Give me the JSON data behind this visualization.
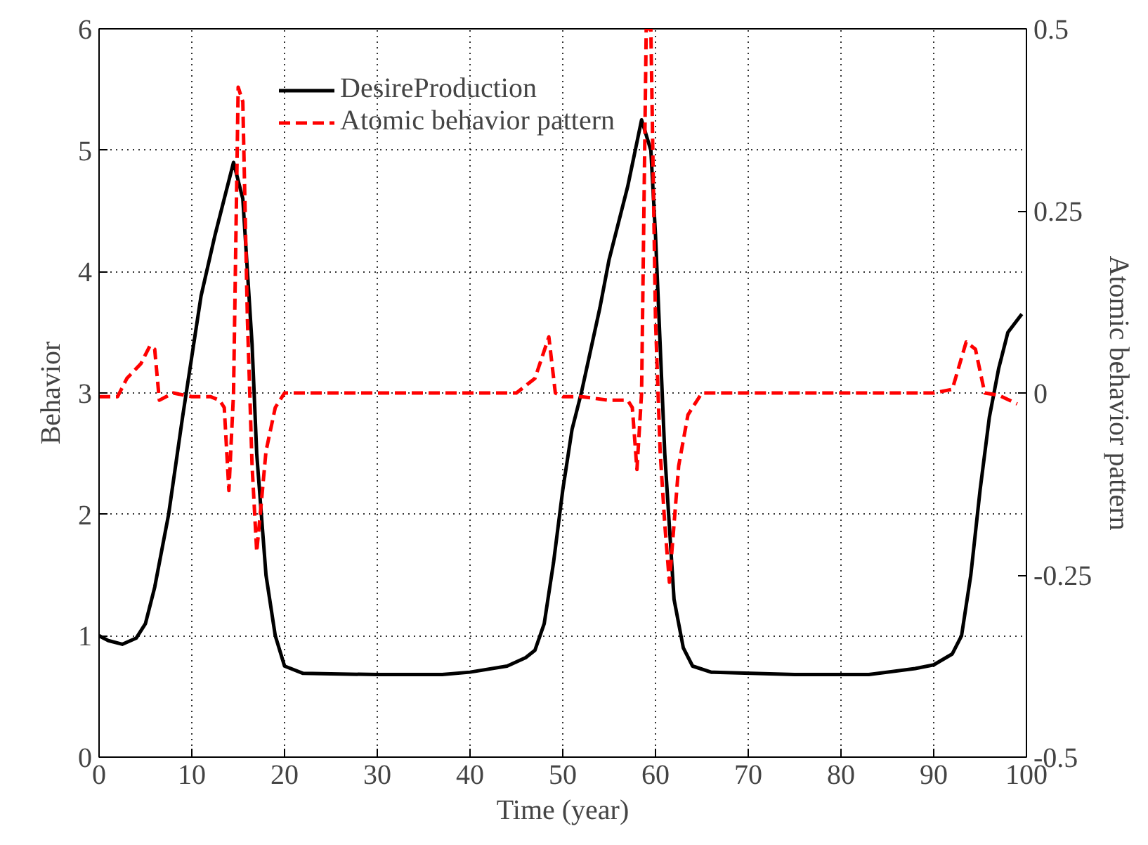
{
  "chart_data": {
    "type": "line",
    "xlabel": "Time (year)",
    "ylabel": "Behavior",
    "y2label": "Atomic behavior pattern",
    "xlim": [
      0,
      100
    ],
    "xticks": [
      0,
      10,
      20,
      30,
      40,
      50,
      60,
      70,
      80,
      90,
      100
    ],
    "ylim": [
      0,
      6
    ],
    "yticks": [
      0,
      1,
      2,
      3,
      4,
      5,
      6
    ],
    "y2lim": [
      -0.5,
      0.5
    ],
    "y2ticks": [
      -0.5,
      -0.25,
      0,
      0.25,
      0.5
    ],
    "grid": true,
    "legend": "top",
    "series": [
      {
        "name": "DesireProduction",
        "color": "#000000",
        "line_style": "solid",
        "x": [
          0,
          1,
          2.5,
          4,
          5,
          6,
          7.5,
          9,
          10,
          11,
          12.5,
          13.5,
          14.5,
          15.5,
          16.5,
          17,
          18,
          19,
          20,
          22,
          30,
          37,
          40,
          44,
          46,
          47,
          48,
          49,
          50,
          51,
          52,
          54,
          55,
          57,
          58.5,
          59.5,
          60,
          60.5,
          61,
          62,
          63,
          64,
          66,
          75,
          83,
          88,
          90,
          92,
          93,
          94,
          95,
          96,
          97,
          98,
          99.5
        ],
        "values": [
          1.0,
          0.96,
          0.93,
          0.98,
          1.1,
          1.4,
          2.0,
          2.8,
          3.3,
          3.8,
          4.3,
          4.6,
          4.9,
          4.6,
          3.4,
          2.5,
          1.5,
          1.0,
          0.75,
          0.69,
          0.68,
          0.68,
          0.7,
          0.75,
          0.82,
          0.88,
          1.1,
          1.6,
          2.2,
          2.7,
          3.0,
          3.7,
          4.1,
          4.7,
          5.25,
          5.0,
          4.3,
          3.4,
          2.5,
          1.3,
          0.9,
          0.75,
          0.7,
          0.68,
          0.68,
          0.73,
          0.76,
          0.85,
          1.0,
          1.5,
          2.2,
          2.8,
          3.2,
          3.5,
          3.65
        ]
      },
      {
        "name": "Atomic behavior pattern",
        "color": "#ff0000",
        "line_style": "dashed",
        "axis": "y2",
        "x": [
          0,
          2,
          3,
          4.5,
          5.5,
          6,
          6.5,
          8,
          10,
          12,
          13,
          13.5,
          14,
          14.5,
          15,
          15.5,
          16,
          16.5,
          17,
          17.5,
          18,
          19,
          20,
          25,
          35,
          45,
          47,
          48.5,
          49.2,
          50,
          52,
          55,
          57,
          57.5,
          58,
          58.5,
          59,
          59.5,
          60,
          60.5,
          61,
          61.5,
          62.5,
          63.5,
          65,
          75,
          90,
          92,
          93.5,
          94.5,
          95.5,
          97,
          99
        ],
        "values": [
          -0.005,
          -0.005,
          0.02,
          0.04,
          0.065,
          0.06,
          -0.01,
          0.0,
          -0.005,
          -0.005,
          -0.01,
          -0.02,
          -0.134,
          0.0,
          0.42,
          0.4,
          0.1,
          -0.1,
          -0.218,
          -0.15,
          -0.08,
          -0.02,
          0.0,
          0.0,
          0.0,
          0.0,
          0.02,
          0.077,
          0.0,
          -0.005,
          -0.005,
          -0.01,
          -0.01,
          -0.02,
          -0.105,
          0.0,
          0.5,
          0.5,
          0.1,
          -0.08,
          -0.18,
          -0.26,
          -0.1,
          -0.03,
          0.0,
          0.0,
          0.0,
          0.005,
          0.07,
          0.06,
          0.0,
          -0.003,
          -0.015
        ]
      }
    ]
  }
}
